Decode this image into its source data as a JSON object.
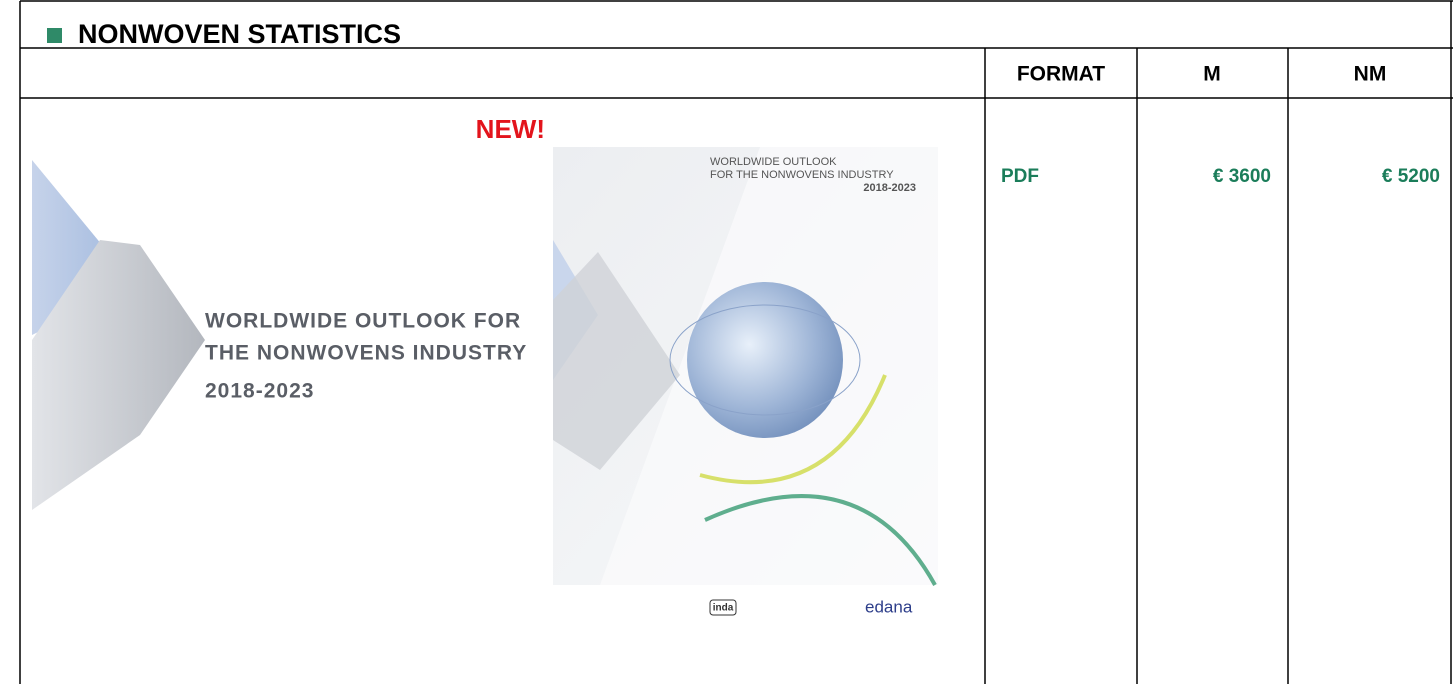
{
  "header": {
    "title": "NONWOVEN STATISTICS"
  },
  "table": {
    "columns": [
      "FORMAT",
      "M",
      "NM"
    ],
    "rows": [
      [
        "PDF",
        "€ 3600",
        "€ 5200"
      ]
    ]
  },
  "badge": "NEW!",
  "banner": {
    "lines": [
      "WORLDWIDE OUTLOOK FOR",
      "THE NONWOVENS INDUSTRY"
    ],
    "years": "2018-2023"
  },
  "cover": {
    "lines": [
      "WORLDWIDE OUTLOOK",
      "FOR THE NONWOVENS INDUSTRY"
    ],
    "years": "2018-2023",
    "logos": [
      "inda",
      "edana"
    ]
  }
}
